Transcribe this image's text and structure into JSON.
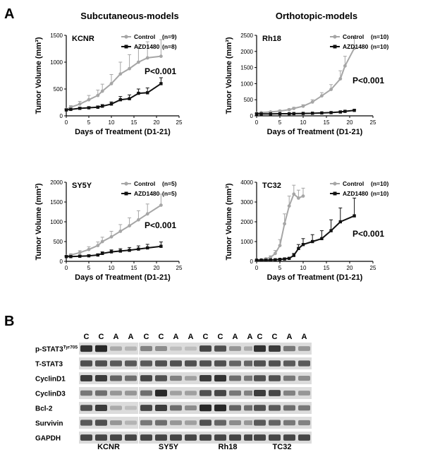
{
  "panel_a_label": "A",
  "panel_b_label": "B",
  "headers": {
    "left": "Subcutaneous-models",
    "right": "Orthotopic-models"
  },
  "chart_data": [
    {
      "type": "line",
      "name": "KCNR",
      "xlabel": "Days of Treatment (D1-21)",
      "ylabel": "Tumor Volume (mm³)",
      "xlim": [
        0,
        25
      ],
      "ylim": [
        0,
        1500
      ],
      "xticks": [
        0,
        5,
        10,
        15,
        20,
        25
      ],
      "yticks": [
        0,
        500,
        1000,
        1500
      ],
      "pvalue": "P<0.001",
      "series": [
        {
          "name": "Control",
          "n": "(n=9)",
          "color": "#a6a6a6",
          "x": [
            0,
            1,
            3,
            5,
            7,
            8,
            10,
            12,
            14,
            16,
            18,
            21
          ],
          "y": [
            120,
            160,
            220,
            300,
            380,
            460,
            600,
            780,
            880,
            1000,
            1080,
            1110
          ],
          "err": [
            15,
            30,
            50,
            80,
            100,
            130,
            170,
            220,
            260,
            290,
            300,
            310
          ]
        },
        {
          "name": "AZD1480",
          "n": "(n=8)",
          "color": "#111111",
          "x": [
            0,
            1,
            3,
            5,
            7,
            8,
            10,
            12,
            14,
            16,
            18,
            21
          ],
          "y": [
            110,
            120,
            140,
            150,
            160,
            180,
            220,
            300,
            320,
            420,
            430,
            600
          ],
          "err": [
            10,
            10,
            15,
            20,
            25,
            30,
            40,
            60,
            70,
            80,
            90,
            110
          ]
        }
      ]
    },
    {
      "type": "line",
      "name": "Rh18",
      "xlabel": "Days of Treatment (D1-21)",
      "ylabel": "Tumor Volume (mm³)",
      "xlim": [
        0,
        25
      ],
      "ylim": [
        0,
        2500
      ],
      "xticks": [
        0,
        5,
        10,
        15,
        20,
        25
      ],
      "yticks": [
        0,
        500,
        1000,
        1500,
        2000,
        2500
      ],
      "pvalue": "P<0.001",
      "series": [
        {
          "name": "Control",
          "n": "(n=10)",
          "color": "#a6a6a6",
          "x": [
            0,
            1,
            3,
            5,
            7,
            8,
            10,
            12,
            14,
            16,
            18,
            19,
            21
          ],
          "y": [
            80,
            100,
            120,
            150,
            190,
            230,
            300,
            430,
            620,
            820,
            1150,
            1550,
            2100
          ],
          "err": [
            10,
            15,
            20,
            25,
            30,
            35,
            45,
            70,
            100,
            150,
            250,
            300,
            330
          ]
        },
        {
          "name": "AZD1480",
          "n": "(n=10)",
          "color": "#111111",
          "x": [
            0,
            1,
            3,
            5,
            7,
            8,
            10,
            12,
            14,
            16,
            18,
            19,
            21
          ],
          "y": [
            60,
            60,
            60,
            65,
            65,
            70,
            75,
            80,
            90,
            100,
            120,
            140,
            170
          ],
          "err": [
            5,
            5,
            5,
            5,
            5,
            5,
            8,
            10,
            10,
            12,
            15,
            18,
            20
          ]
        }
      ]
    },
    {
      "type": "line",
      "name": "SY5Y",
      "xlabel": "Days of Treatment (D1-21)",
      "ylabel": "Tumor Volume (mm³)",
      "xlim": [
        0,
        25
      ],
      "ylim": [
        0,
        2000
      ],
      "xticks": [
        0,
        5,
        10,
        15,
        20,
        25
      ],
      "yticks": [
        0,
        500,
        1000,
        1500,
        2000
      ],
      "pvalue": "P<0.001",
      "series": [
        {
          "name": "Control",
          "n": "(n=5)",
          "color": "#a6a6a6",
          "x": [
            0,
            1,
            3,
            5,
            7,
            8,
            10,
            12,
            14,
            16,
            18,
            21
          ],
          "y": [
            130,
            160,
            220,
            300,
            400,
            500,
            620,
            760,
            900,
            1050,
            1200,
            1420
          ],
          "err": [
            15,
            30,
            50,
            70,
            90,
            110,
            140,
            170,
            200,
            230,
            250,
            280
          ]
        },
        {
          "name": "AZD1480",
          "n": "(n=5)",
          "color": "#111111",
          "x": [
            0,
            1,
            3,
            5,
            7,
            8,
            10,
            12,
            14,
            16,
            18,
            21
          ],
          "y": [
            120,
            120,
            130,
            140,
            160,
            200,
            240,
            260,
            280,
            310,
            340,
            380
          ],
          "err": [
            10,
            15,
            20,
            25,
            30,
            40,
            50,
            60,
            70,
            80,
            90,
            110
          ]
        }
      ]
    },
    {
      "type": "line",
      "name": "TC32",
      "xlabel": "Days of Treatment (D1-21)",
      "ylabel": "Tumor Volume (mm³)",
      "xlim": [
        0,
        25
      ],
      "ylim": [
        0,
        4000
      ],
      "xticks": [
        0,
        5,
        10,
        15,
        20,
        25
      ],
      "yticks": [
        0,
        1000,
        2000,
        3000,
        4000
      ],
      "pvalue": "P<0.001",
      "series": [
        {
          "name": "Control",
          "n": "(n=10)",
          "color": "#a6a6a6",
          "x": [
            0,
            1,
            2,
            3,
            4,
            5,
            6,
            7,
            8,
            9,
            10
          ],
          "y": [
            60,
            80,
            130,
            200,
            400,
            800,
            1900,
            2800,
            3400,
            3200,
            3300
          ],
          "err": [
            10,
            20,
            40,
            80,
            150,
            300,
            500,
            500,
            450,
            400,
            400
          ]
        },
        {
          "name": "AZD1480",
          "n": "(n=10)",
          "color": "#111111",
          "x": [
            0,
            1,
            2,
            3,
            4,
            5,
            6,
            7,
            8,
            9,
            10,
            12,
            14,
            16,
            18,
            21
          ],
          "y": [
            60,
            60,
            60,
            70,
            80,
            100,
            120,
            150,
            300,
            650,
            850,
            1000,
            1150,
            1550,
            2000,
            2300
          ],
          "err": [
            10,
            10,
            10,
            15,
            20,
            25,
            30,
            40,
            100,
            200,
            300,
            350,
            400,
            550,
            700,
            900
          ]
        }
      ]
    }
  ],
  "blot": {
    "conditions": [
      "C",
      "C",
      "A",
      "A"
    ],
    "cell_lines": [
      "KCNR",
      "SY5Y",
      "Rh18",
      "TC32"
    ],
    "rows": [
      {
        "label": "p-STAT3",
        "superscript": "Tyr705",
        "intensity": [
          [
            0.85,
            0.9,
            0.25,
            0.2
          ],
          [
            0.45,
            0.4,
            0.15,
            0.15
          ],
          [
            0.75,
            0.7,
            0.35,
            0.25
          ],
          [
            0.85,
            0.8,
            0.5,
            0.35
          ]
        ]
      },
      {
        "label": "T-STAT3",
        "intensity": [
          [
            0.7,
            0.7,
            0.65,
            0.65
          ],
          [
            0.65,
            0.7,
            0.7,
            0.7
          ],
          [
            0.7,
            0.7,
            0.6,
            0.6
          ],
          [
            0.7,
            0.7,
            0.65,
            0.65
          ]
        ]
      },
      {
        "label": "CyclinD1",
        "intensity": [
          [
            0.8,
            0.8,
            0.6,
            0.55
          ],
          [
            0.75,
            0.7,
            0.45,
            0.3
          ],
          [
            0.8,
            0.85,
            0.55,
            0.5
          ],
          [
            0.7,
            0.7,
            0.5,
            0.4
          ]
        ]
      },
      {
        "label": "CyclinD3",
        "intensity": [
          [
            0.5,
            0.55,
            0.35,
            0.35
          ],
          [
            0.55,
            0.9,
            0.3,
            0.3
          ],
          [
            0.7,
            0.75,
            0.5,
            0.45
          ],
          [
            0.8,
            0.75,
            0.45,
            0.35
          ]
        ]
      },
      {
        "label": "Bcl-2",
        "intensity": [
          [
            0.7,
            0.8,
            0.25,
            0.15
          ],
          [
            0.75,
            0.8,
            0.55,
            0.4
          ],
          [
            0.9,
            0.9,
            0.6,
            0.55
          ],
          [
            0.7,
            0.65,
            0.55,
            0.5
          ]
        ]
      },
      {
        "label": "Survivin",
        "intensity": [
          [
            0.65,
            0.7,
            0.35,
            0.2
          ],
          [
            0.5,
            0.55,
            0.35,
            0.3
          ],
          [
            0.7,
            0.6,
            0.4,
            0.35
          ],
          [
            0.65,
            0.6,
            0.5,
            0.45
          ]
        ]
      },
      {
        "label": "GAPDH",
        "intensity": [
          [
            0.75,
            0.75,
            0.75,
            0.75
          ],
          [
            0.75,
            0.75,
            0.75,
            0.75
          ],
          [
            0.75,
            0.75,
            0.75,
            0.75
          ],
          [
            0.75,
            0.75,
            0.75,
            0.75
          ]
        ]
      }
    ]
  }
}
